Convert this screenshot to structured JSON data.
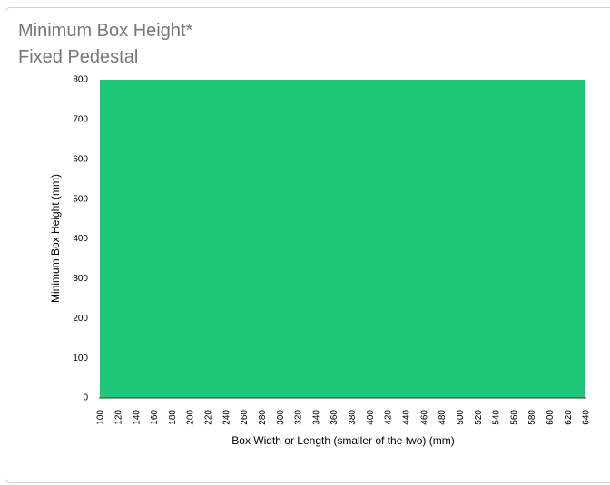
{
  "chart_data": {
    "type": "area",
    "title": "Minimum Box Height*",
    "subtitle": "Fixed Pedestal",
    "x_label": "Box Width or Length (smaller of the two) (mm)",
    "y_label": "Minimum Box Height (mm)",
    "categories": [
      100,
      120,
      140,
      160,
      180,
      200,
      220,
      240,
      260,
      280,
      300,
      320,
      340,
      360,
      380,
      400,
      420,
      440,
      460,
      480,
      500,
      520,
      540,
      560,
      580,
      600,
      620,
      640
    ],
    "values": [
      800,
      800,
      800,
      800,
      800,
      800,
      800,
      800,
      800,
      800,
      800,
      800,
      800,
      800,
      800,
      800,
      800,
      800,
      800,
      800,
      800,
      800,
      800,
      800,
      800,
      800,
      800,
      800
    ],
    "color": "#1fc878",
    "ylim": [
      0,
      800
    ],
    "yticks": [
      0,
      100,
      200,
      300,
      400,
      500,
      600,
      700,
      800
    ],
    "grid": false
  }
}
